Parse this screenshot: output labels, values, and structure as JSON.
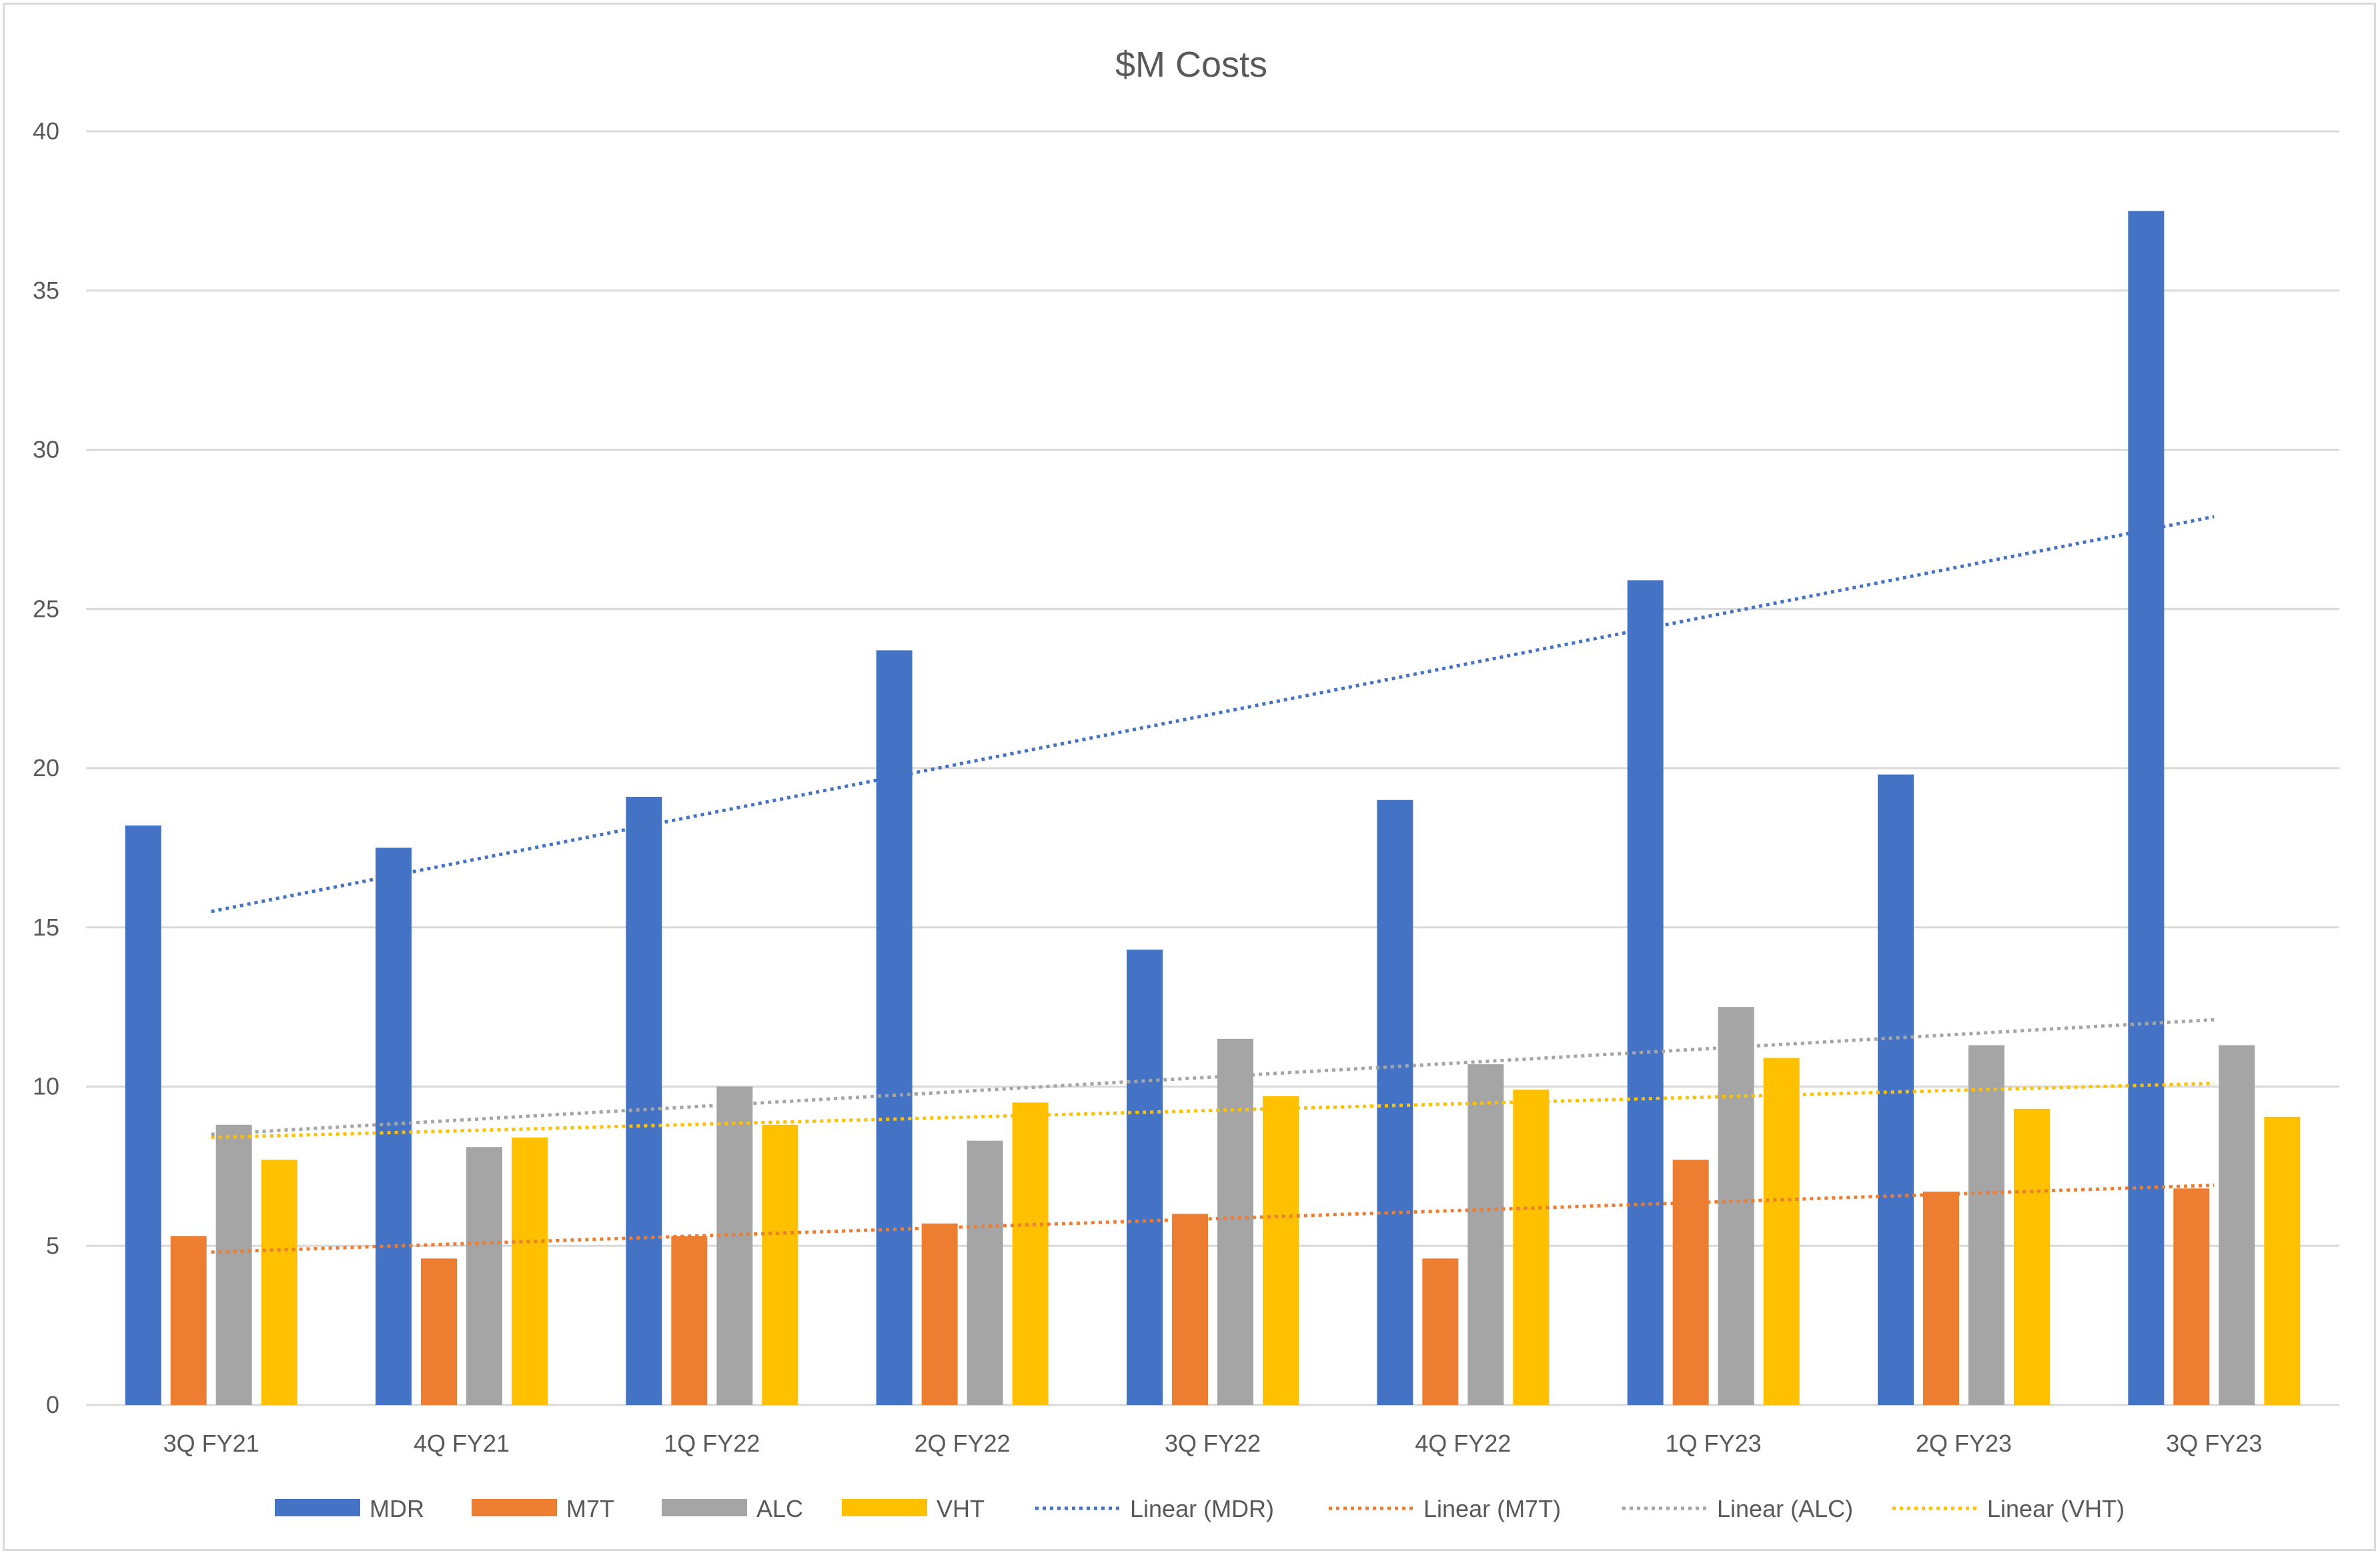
{
  "chart_data": {
    "type": "bar",
    "title": "$M Costs",
    "xlabel": "",
    "ylabel": "",
    "ylim": [
      0,
      40
    ],
    "yticks": [
      0,
      5,
      10,
      15,
      20,
      25,
      30,
      35,
      40
    ],
    "grid": true,
    "legend_position": "bottom",
    "categories": [
      "3Q FY21",
      "4Q FY21",
      "1Q FY22",
      "2Q FY22",
      "3Q FY22",
      "4Q FY22",
      "1Q FY23",
      "2Q FY23",
      "3Q FY23"
    ],
    "series": [
      {
        "name": "MDR",
        "color": "#4472c4",
        "values": [
          18.2,
          17.5,
          19.1,
          23.7,
          14.3,
          19.0,
          25.9,
          19.8,
          37.5
        ]
      },
      {
        "name": "M7T",
        "color": "#ed7d31",
        "values": [
          5.3,
          4.6,
          5.3,
          5.7,
          6.0,
          4.6,
          7.7,
          6.7,
          6.8
        ]
      },
      {
        "name": "ALC",
        "color": "#a5a5a5",
        "values": [
          8.8,
          8.1,
          10.0,
          8.3,
          11.5,
          10.7,
          12.5,
          11.3,
          11.3
        ]
      },
      {
        "name": "VHT",
        "color": "#ffc000",
        "values": [
          7.7,
          8.4,
          8.8,
          9.5,
          9.7,
          9.9,
          10.9,
          9.3,
          9.05
        ]
      }
    ],
    "trendlines": [
      {
        "name": "Linear (MDR)",
        "series": "MDR",
        "color": "#4472c4",
        "start": 15.5,
        "end": 27.9
      },
      {
        "name": "Linear (M7T)",
        "series": "M7T",
        "color": "#ed7d31",
        "start": 4.8,
        "end": 6.9
      },
      {
        "name": "Linear (ALC)",
        "series": "ALC",
        "color": "#a5a5a5",
        "start": 8.5,
        "end": 12.1
      },
      {
        "name": "Linear (VHT)",
        "series": "VHT",
        "color": "#ffc000",
        "start": 8.4,
        "end": 10.1
      }
    ]
  }
}
